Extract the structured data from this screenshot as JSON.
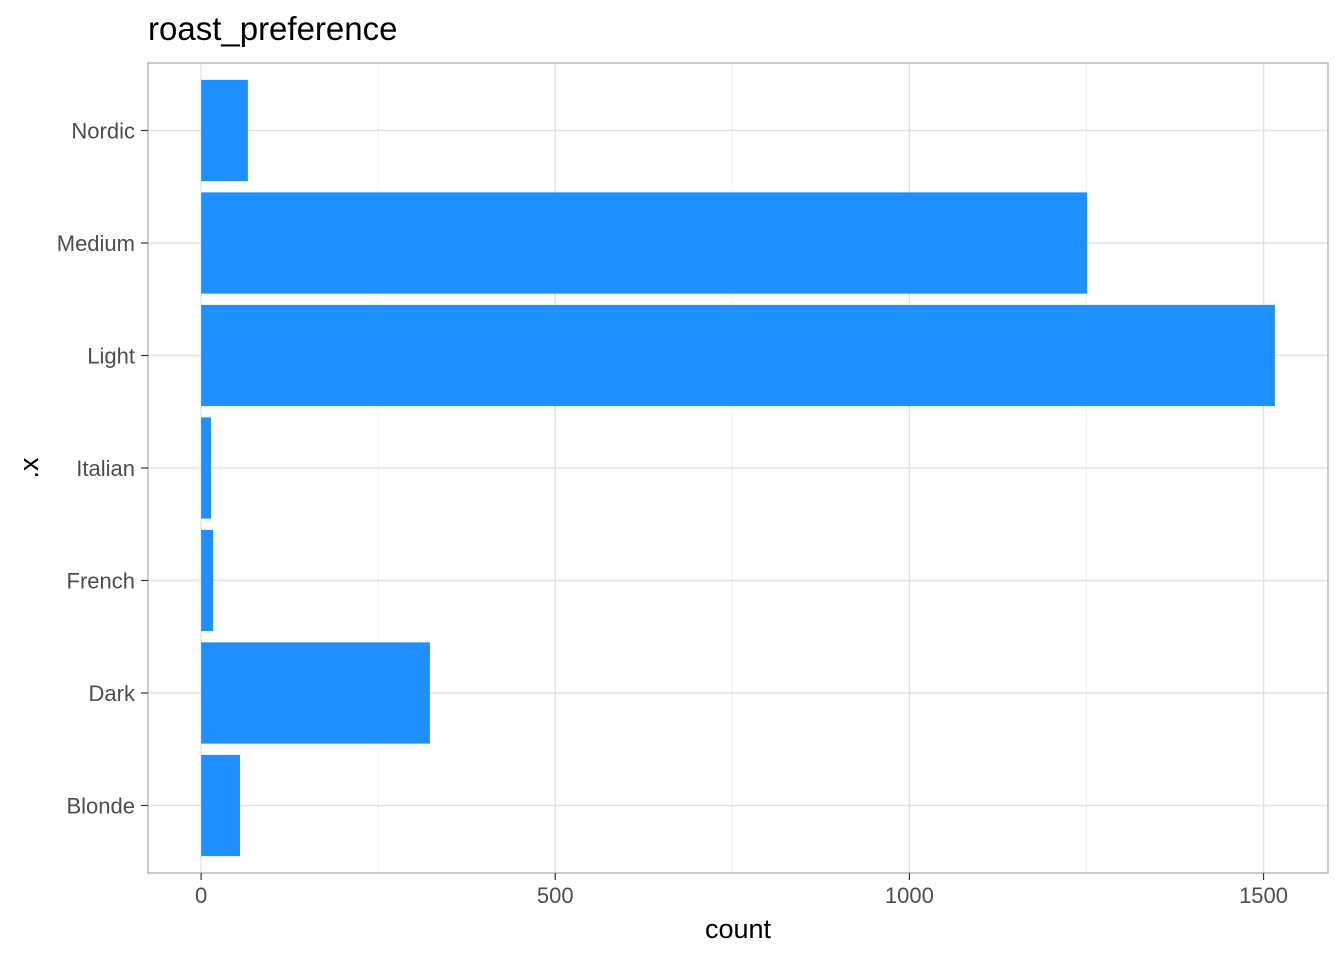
{
  "chart_data": {
    "type": "bar",
    "orientation": "horizontal",
    "title": "roast_preference",
    "xlabel": "count",
    "ylabel": ".x",
    "categories": [
      "Blonde",
      "Dark",
      "French",
      "Italian",
      "Light",
      "Medium",
      "Nordic"
    ],
    "values": [
      55,
      323,
      17,
      14,
      1516,
      1251,
      66
    ],
    "xlim": [
      -75,
      1591
    ],
    "xticks": [
      0,
      500,
      1000,
      1500
    ],
    "x_minor_ticks": [
      250,
      750,
      1250
    ],
    "grid": true,
    "bar_color": "#1E90FF"
  }
}
